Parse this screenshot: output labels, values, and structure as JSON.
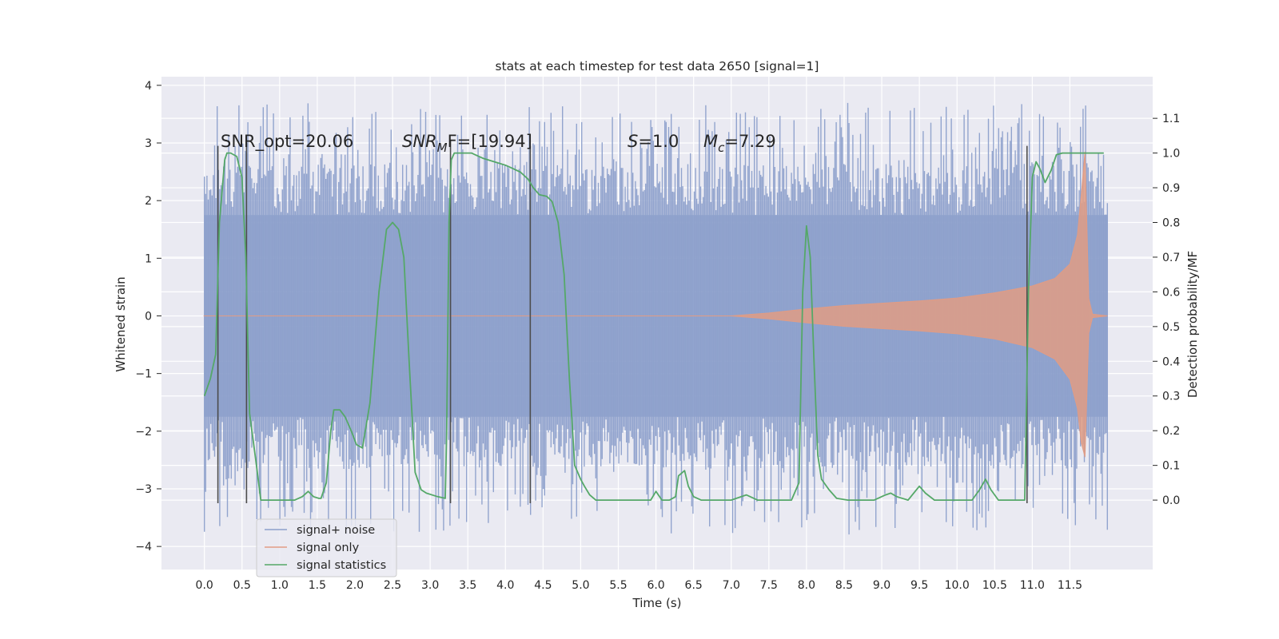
{
  "chart_data": {
    "type": "line",
    "title": "stats at each timestep for test data 2650 [signal=1]",
    "xlabel": "Time (s)",
    "ylabel": "Whitened strain",
    "y2label": "Detection probability/MF",
    "xlim": [
      -0.57,
      12.6
    ],
    "ylim": [
      -4.4,
      4.15
    ],
    "y2lim": [
      -0.2,
      1.22
    ],
    "grid": true,
    "x_ticks": [
      "0.0",
      "0.5",
      "1.0",
      "1.5",
      "2.0",
      "2.5",
      "3.0",
      "3.5",
      "4.0",
      "4.5",
      "5.0",
      "5.5",
      "6.0",
      "6.5",
      "7.0",
      "7.5",
      "8.0",
      "8.5",
      "9.0",
      "9.5",
      "10.0",
      "10.5",
      "11.0",
      "11.5"
    ],
    "y_ticks": [
      "4",
      "3",
      "2",
      "1",
      "0",
      "−1",
      "−2",
      "−3",
      "−4"
    ],
    "y2_ticks": [
      "1.1",
      "1.0",
      "0.9",
      "0.8",
      "0.7",
      "0.6",
      "0.5",
      "0.4",
      "0.3",
      "0.2",
      "0.1",
      "0.0"
    ],
    "annotations": [
      {
        "text": "SNR_opt=20.06"
      },
      {
        "math": "SNR",
        "sub": "M",
        "rest": "F=[19.94]"
      },
      {
        "math": "S",
        "rest": "=1.0"
      },
      {
        "math": "M",
        "sub": "c",
        "rest": "=7.29"
      }
    ],
    "legend": {
      "position": "lower-left",
      "entries": [
        "signal+ noise",
        "signal only",
        "signal statistics"
      ]
    },
    "colors": {
      "signal_noise": "#8da0cb",
      "signal_only": "#e19c84",
      "statistics": "#55a868",
      "markers": "#4c4c4c",
      "background": "#eaeaf2",
      "grid": "#ffffff"
    },
    "series": [
      {
        "name": "signal+ noise",
        "kind": "noise-band",
        "x_range": [
          0.0,
          12.0
        ],
        "inner_amplitude": 1.75,
        "spike_max": 3.7,
        "spike_min": -3.8
      },
      {
        "name": "signal only",
        "kind": "chirp-envelope",
        "x": [
          0.0,
          7.0,
          7.5,
          8.0,
          8.5,
          9.0,
          9.5,
          10.0,
          10.5,
          11.0,
          11.3,
          11.5,
          11.6,
          11.65,
          11.7,
          11.75,
          11.8,
          12.0
        ],
        "upper": [
          0.0,
          0.0,
          0.05,
          0.12,
          0.18,
          0.22,
          0.26,
          0.31,
          0.4,
          0.52,
          0.65,
          0.9,
          1.4,
          2.1,
          2.85,
          0.3,
          0.03,
          0.0
        ],
        "lower": [
          0.0,
          0.0,
          -0.05,
          -0.12,
          -0.18,
          -0.22,
          -0.26,
          -0.31,
          -0.4,
          -0.55,
          -0.75,
          -1.1,
          -1.6,
          -2.2,
          -2.45,
          -0.3,
          -0.03,
          0.0
        ]
      },
      {
        "name": "signal statistics",
        "kind": "line",
        "axis": "right",
        "x": [
          0.0,
          0.08,
          0.15,
          0.2,
          0.27,
          0.3,
          0.35,
          0.43,
          0.5,
          0.55,
          0.6,
          0.68,
          0.75,
          0.85,
          1.0,
          1.2,
          1.3,
          1.38,
          1.45,
          1.52,
          1.55,
          1.62,
          1.68,
          1.72,
          1.8,
          1.87,
          1.95,
          2.02,
          2.1,
          2.2,
          2.32,
          2.42,
          2.5,
          2.58,
          2.65,
          2.72,
          2.8,
          2.88,
          2.95,
          3.1,
          3.2,
          3.22,
          3.25,
          3.28,
          3.32,
          3.4,
          3.55,
          3.6,
          3.7,
          3.85,
          4.0,
          4.1,
          4.2,
          4.3,
          4.37,
          4.45,
          4.55,
          4.62,
          4.7,
          4.78,
          4.85,
          4.92,
          5.0,
          5.05,
          5.12,
          5.2,
          5.35,
          5.55,
          5.78,
          5.93,
          6.0,
          6.08,
          6.18,
          6.26,
          6.3,
          6.38,
          6.43,
          6.5,
          6.6,
          6.75,
          7.0,
          7.2,
          7.35,
          7.5,
          7.8,
          7.9,
          7.95,
          8.0,
          8.05,
          8.1,
          8.15,
          8.2,
          8.3,
          8.4,
          8.55,
          8.9,
          9.05,
          9.12,
          9.2,
          9.35,
          9.5,
          9.58,
          9.7,
          9.8,
          10.0,
          10.2,
          10.3,
          10.38,
          10.45,
          10.55,
          10.9,
          10.95,
          11.0,
          11.05,
          11.1,
          11.17,
          11.25,
          11.32,
          11.4,
          11.5,
          11.7,
          11.95
        ],
        "y": [
          0.3,
          0.35,
          0.42,
          0.8,
          0.98,
          1.0,
          1.0,
          0.99,
          0.93,
          0.7,
          0.25,
          0.12,
          0.0,
          0.0,
          0.0,
          0.0,
          0.01,
          0.025,
          0.01,
          0.005,
          0.005,
          0.05,
          0.2,
          0.26,
          0.26,
          0.24,
          0.2,
          0.16,
          0.15,
          0.28,
          0.6,
          0.78,
          0.8,
          0.78,
          0.7,
          0.4,
          0.08,
          0.03,
          0.02,
          0.01,
          0.005,
          0.2,
          0.8,
          0.98,
          1.0,
          1.0,
          1.0,
          0.995,
          0.985,
          0.975,
          0.965,
          0.955,
          0.945,
          0.925,
          0.9,
          0.88,
          0.875,
          0.86,
          0.8,
          0.65,
          0.35,
          0.1,
          0.06,
          0.04,
          0.015,
          0.0,
          0.0,
          0.0,
          0.0,
          0.0,
          0.025,
          0.0,
          0.0,
          0.01,
          0.07,
          0.085,
          0.04,
          0.01,
          0.0,
          0.0,
          0.0,
          0.015,
          0.0,
          0.0,
          0.0,
          0.05,
          0.6,
          0.79,
          0.7,
          0.4,
          0.13,
          0.06,
          0.03,
          0.005,
          0.0,
          0.0,
          0.015,
          0.02,
          0.01,
          0.0,
          0.04,
          0.02,
          0.0,
          0.0,
          0.0,
          0.0,
          0.03,
          0.06,
          0.03,
          0.0,
          0.0,
          0.6,
          0.93,
          0.975,
          0.955,
          0.915,
          0.95,
          0.995,
          1.0,
          1.0,
          1.0,
          1.0
        ]
      }
    ],
    "vertical_markers": [
      {
        "x": 0.18,
        "y_top": 2.95,
        "y_bottom": -3.25
      },
      {
        "x": 0.56,
        "y_top": 3.0,
        "y_bottom": -3.25
      },
      {
        "x": 3.27,
        "y_top": 3.05,
        "y_bottom": -3.25
      },
      {
        "x": 4.33,
        "y_top": 2.95,
        "y_bottom": -3.25
      },
      {
        "x": 10.93,
        "y_top": 2.95,
        "y_bottom": -3.25
      }
    ]
  }
}
